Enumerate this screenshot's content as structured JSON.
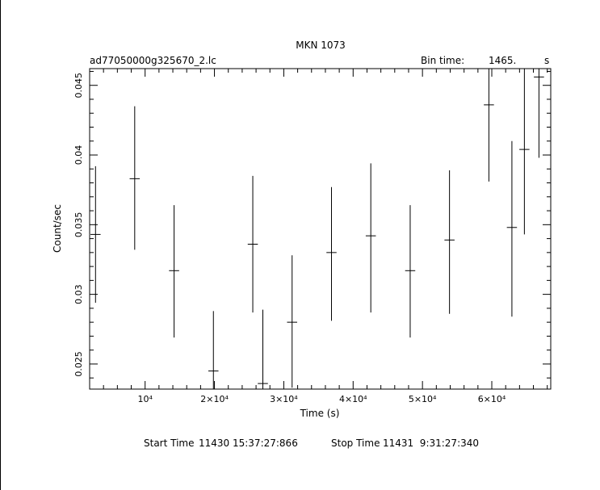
{
  "chart_data": {
    "type": "scatter",
    "title": "MKN 1073",
    "file_label": "ad77050000g325670_2.lc",
    "bin_label": "Bin time:",
    "bin_value": "1465.",
    "bin_unit": "s",
    "xlabel": "Time (s)",
    "ylabel": "Count/sec",
    "xlim": [
      2000,
      68500
    ],
    "ylim": [
      0.0232,
      0.0462
    ],
    "x_ticks": [
      {
        "value": 10000,
        "label": "10⁴"
      },
      {
        "value": 20000,
        "label": "2×10⁴"
      },
      {
        "value": 30000,
        "label": "3×10⁴"
      },
      {
        "value": 40000,
        "label": "4×10⁴"
      },
      {
        "value": 50000,
        "label": "5×10⁴"
      },
      {
        "value": 60000,
        "label": "6×10⁴"
      }
    ],
    "y_ticks": [
      {
        "value": 0.025,
        "label": "0.025"
      },
      {
        "value": 0.03,
        "label": "0.03"
      },
      {
        "value": 0.035,
        "label": "0.035"
      },
      {
        "value": 0.04,
        "label": "0.04"
      },
      {
        "value": 0.045,
        "label": "0.045"
      }
    ],
    "grid": false,
    "points": [
      {
        "x": 2850,
        "xerr": 730,
        "y": 0.0343,
        "ylo": 0.0294,
        "yhi": 0.0392
      },
      {
        "x": 8500,
        "xerr": 730,
        "y": 0.0383,
        "ylo": 0.0332,
        "yhi": 0.0435
      },
      {
        "x": 14180,
        "xerr": 730,
        "y": 0.0317,
        "ylo": 0.0269,
        "yhi": 0.0364
      },
      {
        "x": 19850,
        "xerr": 730,
        "y": 0.0245,
        "ylo": 0.0232,
        "yhi": 0.0288
      },
      {
        "x": 25530,
        "xerr": 730,
        "y": 0.0336,
        "ylo": 0.0287,
        "yhi": 0.0385
      },
      {
        "x": 26980,
        "xerr": 730,
        "y": 0.0236,
        "ylo": 0.0232,
        "yhi": 0.0289
      },
      {
        "x": 31200,
        "xerr": 730,
        "y": 0.028,
        "ylo": 0.0233,
        "yhi": 0.0328
      },
      {
        "x": 36880,
        "xerr": 730,
        "y": 0.033,
        "ylo": 0.0281,
        "yhi": 0.0377
      },
      {
        "x": 42550,
        "xerr": 730,
        "y": 0.0342,
        "ylo": 0.0287,
        "yhi": 0.0394
      },
      {
        "x": 48230,
        "xerr": 730,
        "y": 0.0317,
        "ylo": 0.0269,
        "yhi": 0.0364
      },
      {
        "x": 53900,
        "xerr": 730,
        "y": 0.0339,
        "ylo": 0.0286,
        "yhi": 0.0389
      },
      {
        "x": 59580,
        "xerr": 730,
        "y": 0.0436,
        "ylo": 0.0381,
        "yhi": 0.0462
      },
      {
        "x": 62900,
        "xerr": 730,
        "y": 0.0348,
        "ylo": 0.0284,
        "yhi": 0.041
      },
      {
        "x": 64700,
        "xerr": 730,
        "y": 0.0404,
        "ylo": 0.0343,
        "yhi": 0.0462
      },
      {
        "x": 66800,
        "xerr": 730,
        "y": 0.0456,
        "ylo": 0.0398,
        "yhi": 0.0462
      }
    ],
    "footer": {
      "start_label": "Start Time",
      "start_value": "11430 15:37:27:866",
      "stop_label": "Stop Time",
      "stop_value": "11431  9:31:27:340"
    }
  }
}
